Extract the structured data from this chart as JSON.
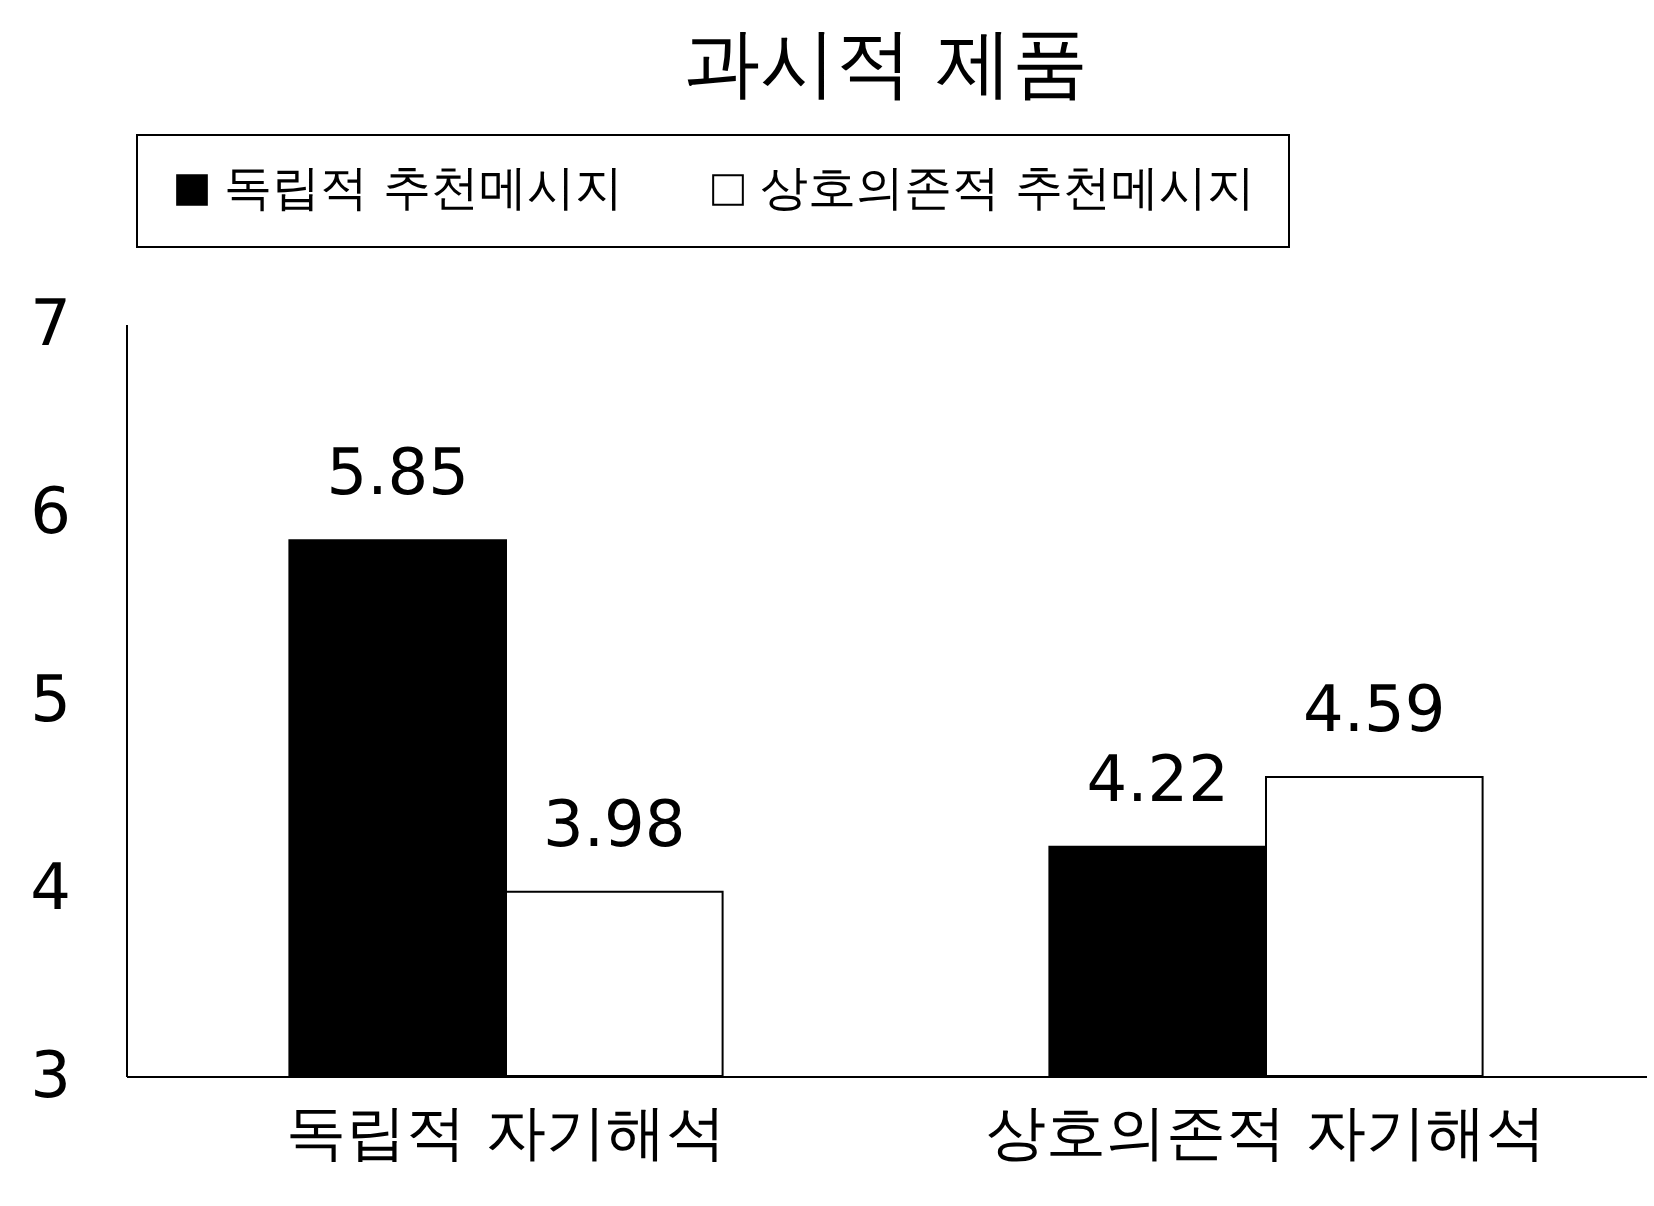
{
  "chart_data": {
    "type": "bar",
    "title": "과시적 제품",
    "categories": [
      "독립적 자기해석",
      "상호의존적 자기해석"
    ],
    "series": [
      {
        "name": "독립적 추천메시지",
        "color": "#000000",
        "values": [
          5.85,
          4.22
        ]
      },
      {
        "name": "상호의존적 추천메시지",
        "color": "#ffffff",
        "values": [
          3.98,
          4.59
        ]
      }
    ],
    "ylim": [
      3,
      7
    ],
    "yticks": [
      3,
      4,
      5,
      6,
      7
    ],
    "grid": false,
    "legend": "top",
    "data_labels": true
  }
}
